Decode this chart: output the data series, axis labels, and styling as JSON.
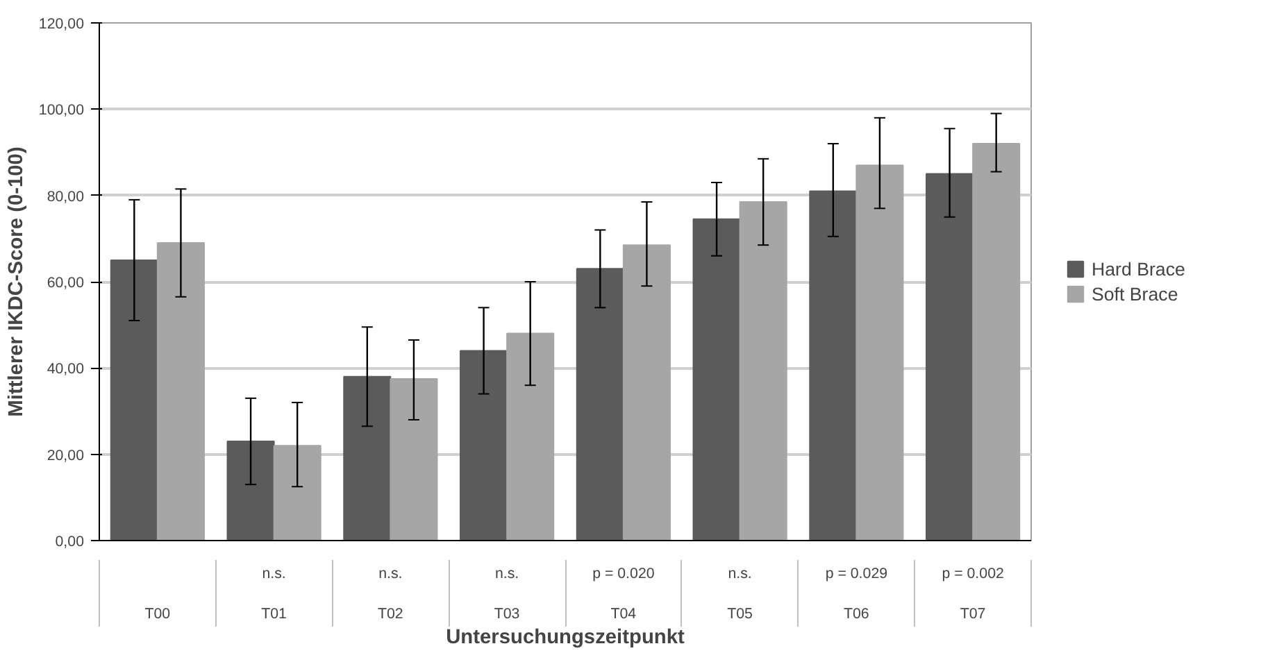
{
  "chart_data": {
    "type": "bar",
    "xlabel": "Untersuchungszeitpunkt",
    "ylabel": "Mittlerer IKDC-Score (0-100)",
    "categories": [
      "T00",
      "T01",
      "T02",
      "T03",
      "T04",
      "T05",
      "T06",
      "T07"
    ],
    "series": [
      {
        "name": "Hard Brace",
        "color": "#5b5b5b",
        "values": [
          65,
          23,
          38,
          44,
          63,
          74.5,
          81,
          85
        ],
        "errors": [
          [
            51,
            79
          ],
          [
            13,
            33
          ],
          [
            26.5,
            49.5
          ],
          [
            34,
            54
          ],
          [
            54,
            72
          ],
          [
            66,
            83
          ],
          [
            70.5,
            92
          ],
          [
            75,
            95.5
          ]
        ]
      },
      {
        "name": "Soft Brace",
        "color": "#a6a6a6",
        "values": [
          69,
          22,
          37.5,
          48,
          68.5,
          78.5,
          87,
          92
        ],
        "errors": [
          [
            56.5,
            81.5
          ],
          [
            12.5,
            32
          ],
          [
            28,
            46.5
          ],
          [
            36,
            60
          ],
          [
            59,
            78.5
          ],
          [
            68.5,
            88.5
          ],
          [
            77,
            98
          ],
          [
            85.5,
            99
          ]
        ]
      }
    ],
    "annotations": [
      "n.s.",
      "n.s.",
      "n.s.",
      "p = 0.020",
      "n.s.",
      "p = 0.029",
      "p = 0.002"
    ],
    "ylim": [
      0,
      120
    ],
    "yticks": [
      {
        "value": 0,
        "label": "0,00"
      },
      {
        "value": 20,
        "label": "20,00"
      },
      {
        "value": 40,
        "label": "40,00"
      },
      {
        "value": 60,
        "label": "60,00"
      },
      {
        "value": 80,
        "label": "80,00"
      },
      {
        "value": 100,
        "label": "100,00"
      },
      {
        "value": 120,
        "label": "120,00"
      }
    ],
    "grid": "y",
    "legend": "right"
  }
}
